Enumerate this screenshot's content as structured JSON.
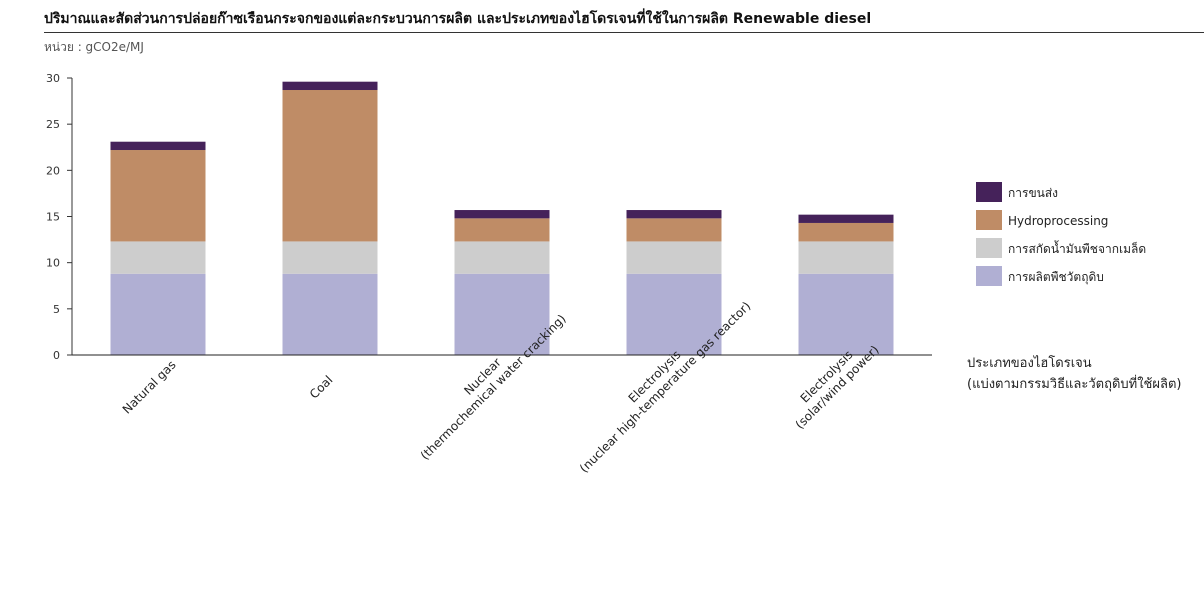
{
  "title": "ปริมาณและสัดส่วนการปล่อยก๊าซเรือนกระจกของแต่ละกระบวนการผลิต  และประเภทของไฮโดรเจนที่ใช้ในการผลิต  Renewable diesel",
  "unit_label": "หน่วย : gCO2e/MJ",
  "chart_data": {
    "type": "bar",
    "stacked": true,
    "title": "ปริมาณและสัดส่วนการปล่อยก๊าซเรือนกระจกของแต่ละกระบวนการผลิต  และประเภทของไฮโดรเจนที่ใช้ในการผลิต  Renewable diesel",
    "ylabel": "หน่วย : gCO2e/MJ",
    "xlabel": [
      "ประเภทของไฮโดรเจน",
      "(แบ่งตามกรรมวิธีและวัตถุดิบที่ใช้ผลิต)"
    ],
    "ylim": [
      0,
      30
    ],
    "yticks": [
      0,
      5,
      10,
      15,
      20,
      25,
      30
    ],
    "grid": false,
    "legend_position": "right",
    "categories": [
      [
        "Natural gas"
      ],
      [
        "Coal"
      ],
      [
        "Nuclear",
        "(thermochemical water cracking)"
      ],
      [
        "Electrolysis",
        "(nuclear high-temperature gas reactor)"
      ],
      [
        "Electrolysis",
        "(solar/wind power)"
      ]
    ],
    "series": [
      {
        "name": "การผลิตพืชวัตถุดิบ",
        "color": "#b0afd3",
        "values": [
          8.8,
          8.8,
          8.8,
          8.8,
          8.8
        ]
      },
      {
        "name": "การสกัดน้ำมันพืชจากเมล็ด",
        "color": "#cdcdcd",
        "values": [
          3.5,
          3.5,
          3.5,
          3.5,
          3.5
        ]
      },
      {
        "name": "Hydroprocessing",
        "color": "#bf8c66",
        "values": [
          9.9,
          16.4,
          2.5,
          2.5,
          2.0
        ]
      },
      {
        "name": "การขนส่ง",
        "color": "#45225a",
        "values": [
          0.9,
          0.9,
          0.9,
          0.9,
          0.9
        ]
      }
    ]
  }
}
